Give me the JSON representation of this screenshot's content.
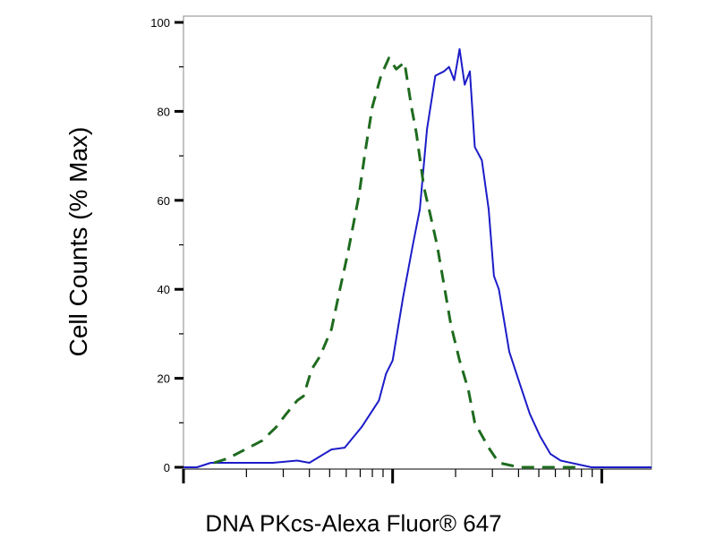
{
  "chart_data": {
    "type": "line",
    "title": "",
    "xlabel": "DNA PKcs-Alexa Fluor® 647",
    "ylabel": "Cell Counts (% Max)",
    "xscale": "log",
    "xlim": [
      1,
      173
    ],
    "ylim": [
      0,
      100
    ],
    "yticks": [
      0,
      20,
      40,
      60,
      80,
      100
    ],
    "ytick_labels": [
      "0",
      "20",
      "40",
      "60",
      "80",
      "100"
    ],
    "xtick_labels": [],
    "grid": false,
    "legend": "none",
    "series": [
      {
        "color": "#1c1cc8",
        "style": "solid",
        "x": [
          1,
          1.16,
          1.35,
          1.97,
          2.67,
          3.5,
          4.0,
          5.1,
          5.9,
          7.1,
          8.6,
          9.3,
          10,
          11.2,
          12.5,
          13.5,
          14.6,
          16.0,
          17.6,
          18.6,
          19.7,
          20.9,
          22.1,
          23.4,
          24.7,
          26.7,
          28.8,
          30.5,
          32.2,
          36.1,
          40.4,
          45.3,
          50.7,
          56.8,
          63.6,
          79.7,
          89.3,
          173
        ],
        "y": [
          0,
          0,
          1,
          1,
          1,
          1.5,
          1,
          4,
          4.4,
          9,
          15,
          21,
          24,
          38,
          50,
          58,
          76,
          88,
          89,
          90,
          87,
          94,
          86,
          89,
          72,
          69,
          58,
          43,
          40,
          26,
          19,
          12,
          7,
          3,
          1.5,
          0.5,
          0,
          0
        ]
      },
      {
        "color": "#1e6b1e",
        "style": "dashed",
        "x": [
          1.4,
          1.63,
          2.05,
          2.38,
          2.77,
          3.1,
          3.5,
          3.75,
          4.1,
          4.5,
          5.1,
          5.6,
          6.1,
          6.9,
          7.4,
          8.0,
          8.8,
          9.6,
          10.4,
          11.4,
          12.3,
          13.0,
          14.1,
          15.1,
          16.3,
          17.6,
          19.0,
          20.9,
          23.0,
          24.7,
          28.8,
          32.2,
          40.4,
          45.3,
          58.9,
          79.7
        ],
        "y": [
          1,
          2,
          4.4,
          6,
          9,
          12,
          15,
          16,
          22,
          25,
          31,
          40,
          48,
          61,
          71,
          81,
          88,
          92,
          89.5,
          91,
          81,
          75,
          63,
          57,
          50,
          41,
          32,
          24,
          17.5,
          10,
          4.4,
          1,
          0,
          0,
          0,
          0
        ]
      }
    ]
  }
}
